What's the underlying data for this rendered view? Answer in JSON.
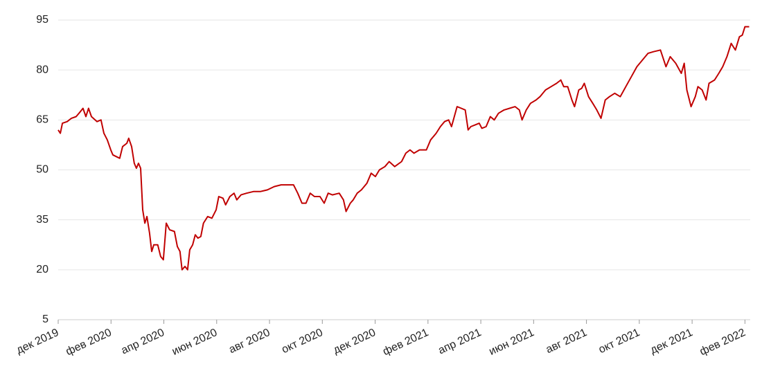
{
  "chart_data": {
    "type": "line",
    "x": [
      0,
      0.08,
      0.16,
      0.34,
      0.5,
      0.68,
      0.84,
      0.94,
      1.05,
      1.15,
      1.26,
      1.47,
      1.62,
      1.73,
      1.86,
      1.99,
      2.07,
      2.2,
      2.33,
      2.44,
      2.6,
      2.67,
      2.78,
      2.88,
      2.96,
      3.04,
      3.12,
      3.2,
      3.28,
      3.36,
      3.46,
      3.54,
      3.62,
      3.77,
      3.88,
      3.98,
      4.09,
      4.22,
      4.4,
      4.51,
      4.61,
      4.69,
      4.8,
      4.9,
      4.98,
      5.09,
      5.19,
      5.29,
      5.4,
      5.5,
      5.66,
      5.82,
      5.98,
      6.08,
      6.24,
      6.34,
      6.5,
      6.66,
      6.76,
      6.92,
      7.13,
      7.39,
      7.65,
      7.92,
      8.18,
      8.44,
      8.7,
      8.91,
      9.07,
      9.23,
      9.38,
      9.54,
      9.7,
      9.91,
      10.07,
      10.22,
      10.38,
      10.64,
      10.8,
      10.9,
      11.06,
      11.17,
      11.32,
      11.48,
      11.69,
      11.85,
      12.01,
      12.16,
      12.37,
      12.53,
      12.74,
      13.0,
      13.16,
      13.32,
      13.47,
      13.68,
      13.94,
      14.1,
      14.31,
      14.47,
      14.63,
      14.78,
      14.89,
      15.1,
      15.26,
      15.41,
      15.52,
      15.62,
      15.78,
      15.94,
      16.04,
      16.2,
      16.36,
      16.51,
      16.67,
      16.88,
      17.09,
      17.3,
      17.46,
      17.56,
      17.72,
      17.88,
      18.09,
      18.24,
      18.45,
      18.66,
      18.87,
      19.03,
      19.14,
      19.29,
      19.45,
      19.55,
      19.71,
      19.82,
      19.92,
      20.08,
      20.24,
      20.39,
      20.55,
      20.71,
      20.87,
      21.07,
      21.28,
      21.49,
      21.7,
      21.91,
      22.12,
      22.33,
      22.54,
      22.8,
      23.01,
      23.17,
      23.38,
      23.59,
      23.7,
      23.8,
      23.96,
      24.12,
      24.22,
      24.38,
      24.53,
      24.64,
      24.85,
      25.01,
      25.16,
      25.32,
      25.48,
      25.64,
      25.79,
      25.9,
      26.0,
      26.16
    ],
    "series": [
      {
        "color": "#c00000",
        "values": [
          62,
          61,
          64,
          64.5,
          65.5,
          66,
          67.5,
          68.5,
          66,
          68.5,
          66,
          64.5,
          65,
          61,
          59,
          56,
          54.5,
          54,
          53.5,
          57,
          58,
          59.5,
          57,
          52,
          50.5,
          52,
          50.5,
          38,
          34,
          36,
          31,
          25.5,
          27.5,
          27.5,
          24,
          23,
          34,
          32,
          31.5,
          27,
          25.5,
          20,
          21,
          20,
          26,
          27.5,
          30.5,
          29.5,
          30,
          34,
          36,
          35.5,
          38,
          42,
          41.5,
          39.5,
          42,
          43,
          41,
          42.5,
          43,
          43.5,
          43.5,
          44,
          45,
          45.5,
          45.5,
          45.5,
          43,
          40,
          40,
          43,
          42,
          42,
          40,
          43,
          42.5,
          43,
          41,
          37.5,
          40,
          41,
          43,
          44,
          46,
          49,
          48,
          50,
          51,
          52.5,
          51,
          52.5,
          55,
          56,
          55,
          56,
          56,
          59,
          61,
          63,
          64.5,
          65,
          63,
          69,
          68.5,
          68,
          62,
          63,
          63.5,
          64,
          62.5,
          63,
          66,
          65,
          67,
          68,
          68.5,
          69,
          68,
          65,
          68,
          70,
          71,
          72,
          74,
          75,
          76,
          77,
          75,
          75,
          71,
          69,
          74,
          74.5,
          76,
          72,
          70,
          68,
          65.5,
          71,
          72,
          73,
          72,
          75,
          78,
          81,
          83,
          85,
          85.5,
          86,
          81,
          84,
          82,
          79,
          82,
          74,
          69,
          72,
          75,
          74,
          71,
          76,
          77,
          79,
          81,
          84,
          88,
          86,
          90,
          90.5,
          93,
          93
        ]
      }
    ],
    "xlim": [
      0,
      26.2
    ],
    "xticks": [
      {
        "value": 0,
        "label": "дек 2019"
      },
      {
        "value": 2,
        "label": "фев 2020"
      },
      {
        "value": 4,
        "label": "апр 2020"
      },
      {
        "value": 6,
        "label": "июн 2020"
      },
      {
        "value": 8,
        "label": "авг 2020"
      },
      {
        "value": 10,
        "label": "окт 2020"
      },
      {
        "value": 12,
        "label": "дек 2020"
      },
      {
        "value": 14,
        "label": "фев 2021"
      },
      {
        "value": 16,
        "label": "апр 2021"
      },
      {
        "value": 18,
        "label": "июн 2021"
      },
      {
        "value": 20,
        "label": "авг 2021"
      },
      {
        "value": 22,
        "label": "окт 2021"
      },
      {
        "value": 24,
        "label": "дек 2021"
      },
      {
        "value": 26,
        "label": "фев 2022"
      }
    ],
    "ylim": [
      5,
      95
    ],
    "yticks": [
      5,
      20,
      35,
      50,
      65,
      80,
      95
    ],
    "grid": true
  }
}
